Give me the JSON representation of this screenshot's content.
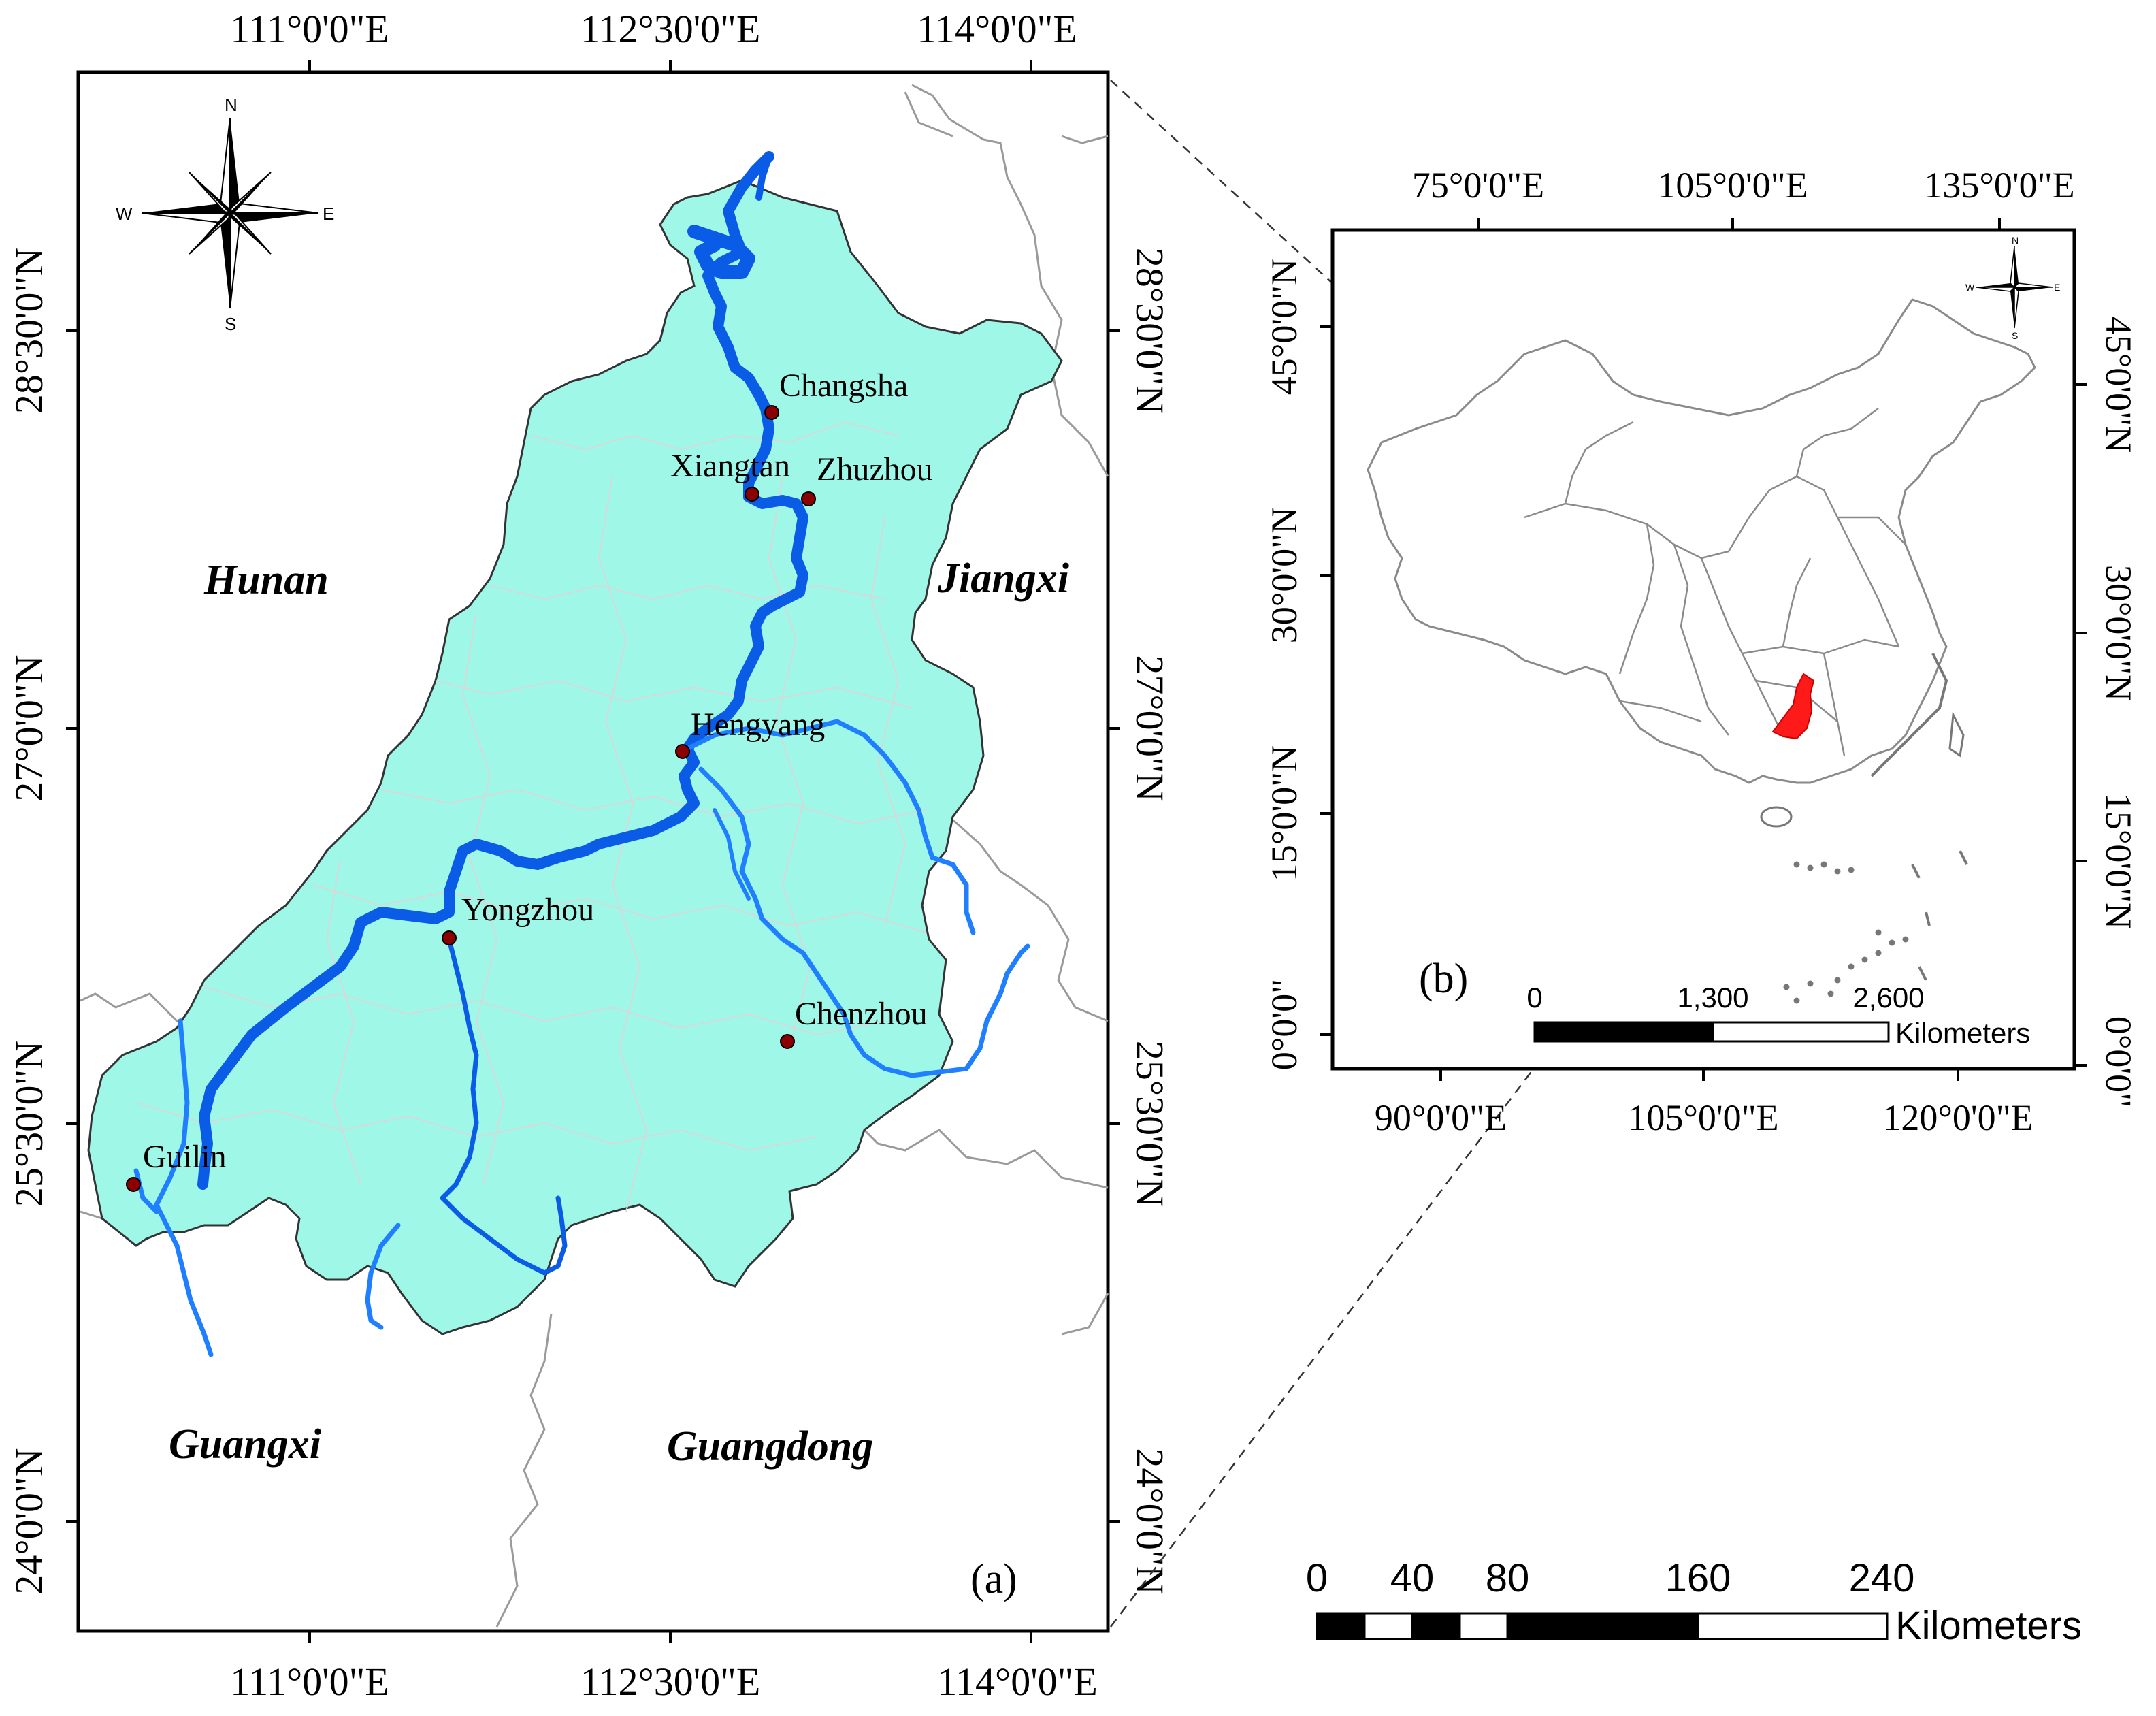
{
  "map_a": {
    "panel_label": "(a)",
    "top_lon_labels": [
      "111°0'0\"E",
      "112°30'0\"E",
      "114°0'0\"E"
    ],
    "bottom_lon_labels": [
      "111°0'0\"E",
      "112°30'0\"E",
      "114°0'0\"E"
    ],
    "left_lat_labels": [
      "28°30'0\"N",
      "27°0'0\"N",
      "25°30'0\"N",
      "24°0'0\"N"
    ],
    "right_lat_labels": [
      "28°30'0\"N",
      "27°0'0\"N",
      "25°30'0\"N",
      "24°0'0\"N"
    ],
    "cities": [
      "Changsha",
      "Xiangtan",
      "Zhuzhou",
      "Hengyang",
      "Yongzhou",
      "Chenzhou",
      "Guilin"
    ],
    "provinces": [
      "Hunan",
      "Jiangxi",
      "Guangxi",
      "Guangdong"
    ],
    "compass": {
      "n": "N",
      "s": "S",
      "e": "E",
      "w": "W"
    },
    "scale_bar": {
      "ticks": [
        "0",
        "40",
        "80",
        "160",
        "240"
      ],
      "unit": "Kilometers"
    }
  },
  "map_b": {
    "panel_label": "(b)",
    "top_lon_labels": [
      "75°0'0\"E",
      "105°0'0\"E",
      "135°0'0\"E"
    ],
    "bottom_lon_labels": [
      "90°0'0\"E",
      "105°0'0\"E",
      "120°0'0\"E"
    ],
    "left_lat_labels": [
      "45°0'0\"N",
      "30°0'0\"N",
      "15°0'0\"N",
      "0°0'0\""
    ],
    "right_lat_labels": [
      "45°0'0\"N",
      "30°0'0\"N",
      "15°0'0\"N",
      "0°0'0\""
    ],
    "compass": {
      "n": "N",
      "s": "S",
      "e": "E",
      "w": "W"
    },
    "scale_bar": {
      "ticks": [
        "0",
        "1,300",
        "2,600"
      ],
      "unit": "Kilometers"
    }
  },
  "colors": {
    "basin_fill": "#9ff7e8",
    "river": "#0a5ce6",
    "river_thin": "#1f7fff",
    "city_dot": "#8b0000",
    "highlight": "#ff1a1a",
    "border_gray": "#9a9a9a",
    "inner_border": "#d8d8d8"
  }
}
